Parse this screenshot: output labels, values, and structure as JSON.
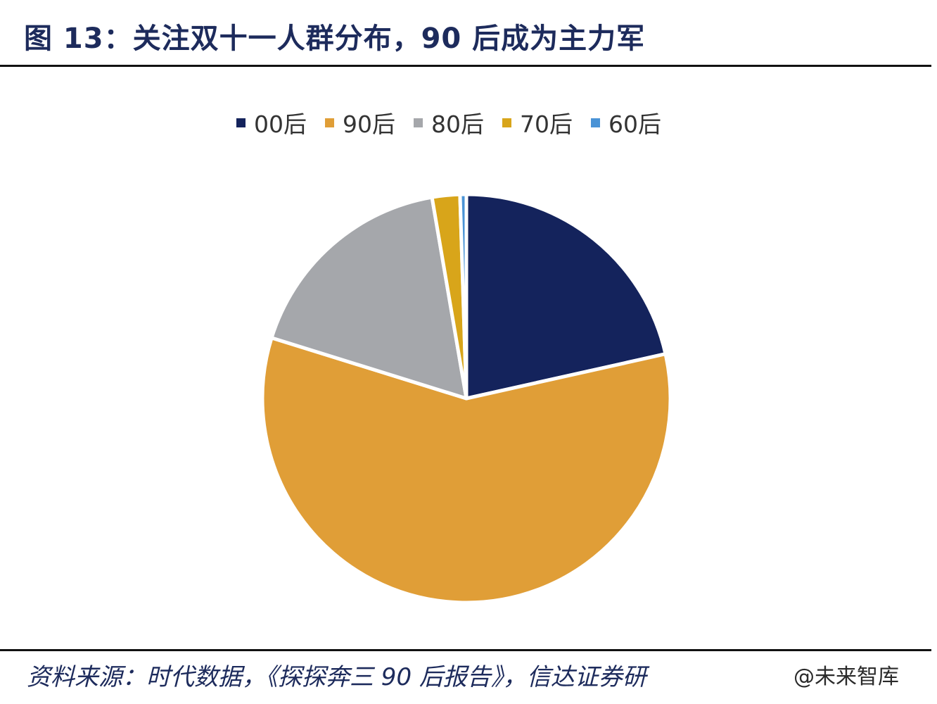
{
  "title": "图 13：关注双十一人群分布，90 后成为主力军",
  "source": "资料来源：时代数据，《探探奔三 90 后报告》，信达证券研",
  "watermark": "@未来智库",
  "chart_data": {
    "type": "pie",
    "categories": [
      "00后",
      "90后",
      "80后",
      "70后",
      "60后"
    ],
    "values": [
      21.5,
      58.3,
      17.5,
      2.2,
      0.5
    ],
    "colors": [
      "#14235c",
      "#e09e37",
      "#a5a7ab",
      "#d8a51a",
      "#4a93d6"
    ],
    "start_angle_deg": 0,
    "direction": "clockwise",
    "legend_position": "top"
  }
}
